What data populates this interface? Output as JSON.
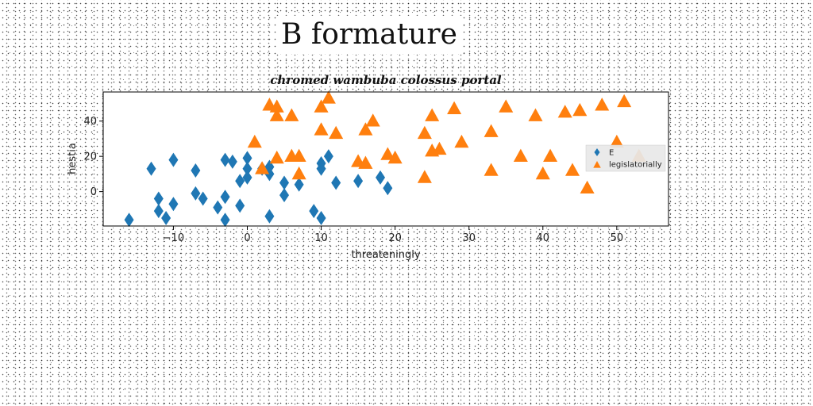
{
  "page": {
    "title": "B formature"
  },
  "colors": {
    "E": "#1f77b4",
    "legislatorially": "#ff7f0e",
    "axis": "#000000"
  },
  "chart_data": {
    "type": "scatter",
    "title": "chromed wambuba colossus portal",
    "xlabel": "threateningly",
    "ylabel": "hestia",
    "xlim": [
      -19.5,
      57
    ],
    "ylim": [
      -19.5,
      56.5
    ],
    "xticks": [
      -10,
      0,
      10,
      20,
      30,
      40,
      50
    ],
    "yticks": [
      0,
      20,
      40
    ],
    "xtick_labels": [
      "−10",
      "0",
      "10",
      "20",
      "30",
      "40",
      "50"
    ],
    "ytick_labels": [
      "0",
      "20",
      "40"
    ],
    "legend": {
      "placement": "right",
      "entries": [
        "E",
        "legislatorially"
      ]
    },
    "series": [
      {
        "name": "E",
        "marker": "diamond",
        "points": [
          [
            -16,
            -16
          ],
          [
            -13,
            13
          ],
          [
            -12,
            -4
          ],
          [
            -12,
            -11
          ],
          [
            -11,
            -15
          ],
          [
            -10,
            -7
          ],
          [
            -10,
            18
          ],
          [
            -7,
            12
          ],
          [
            -7,
            -1
          ],
          [
            -6,
            -4
          ],
          [
            -4,
            -9
          ],
          [
            -3,
            -3
          ],
          [
            -3,
            -16
          ],
          [
            -3,
            18
          ],
          [
            -2,
            17
          ],
          [
            -1,
            -8
          ],
          [
            -1,
            6
          ],
          [
            0,
            8
          ],
          [
            0,
            13
          ],
          [
            0,
            19
          ],
          [
            2,
            13
          ],
          [
            3,
            10
          ],
          [
            3,
            14
          ],
          [
            3,
            -14
          ],
          [
            5,
            5
          ],
          [
            5,
            -2
          ],
          [
            7,
            4
          ],
          [
            9,
            -11
          ],
          [
            10,
            -15
          ],
          [
            10,
            13
          ],
          [
            10,
            16
          ],
          [
            11,
            20
          ],
          [
            12,
            5
          ],
          [
            15,
            6
          ],
          [
            18,
            8
          ],
          [
            19,
            2
          ]
        ]
      },
      {
        "name": "legislatorially",
        "marker": "triangle",
        "points": [
          [
            1,
            28
          ],
          [
            2,
            13
          ],
          [
            3,
            49
          ],
          [
            4,
            48
          ],
          [
            4,
            43
          ],
          [
            4,
            19
          ],
          [
            6,
            20
          ],
          [
            6,
            43
          ],
          [
            7,
            20
          ],
          [
            7,
            10
          ],
          [
            10,
            48
          ],
          [
            10,
            35
          ],
          [
            11,
            53
          ],
          [
            12,
            33
          ],
          [
            15,
            17
          ],
          [
            16,
            16
          ],
          [
            16,
            35
          ],
          [
            17,
            40
          ],
          [
            19,
            21
          ],
          [
            20,
            19
          ],
          [
            24,
            33
          ],
          [
            24,
            8
          ],
          [
            25,
            43
          ],
          [
            25,
            23
          ],
          [
            26,
            24
          ],
          [
            28,
            47
          ],
          [
            29,
            28
          ],
          [
            33,
            34
          ],
          [
            33,
            12
          ],
          [
            35,
            48
          ],
          [
            37,
            20
          ],
          [
            39,
            43
          ],
          [
            40,
            10
          ],
          [
            41,
            20
          ],
          [
            43,
            45
          ],
          [
            44,
            12
          ],
          [
            45,
            46
          ],
          [
            46,
            2
          ],
          [
            48,
            49
          ],
          [
            50,
            28
          ],
          [
            51,
            51
          ],
          [
            53,
            20
          ]
        ]
      }
    ]
  }
}
